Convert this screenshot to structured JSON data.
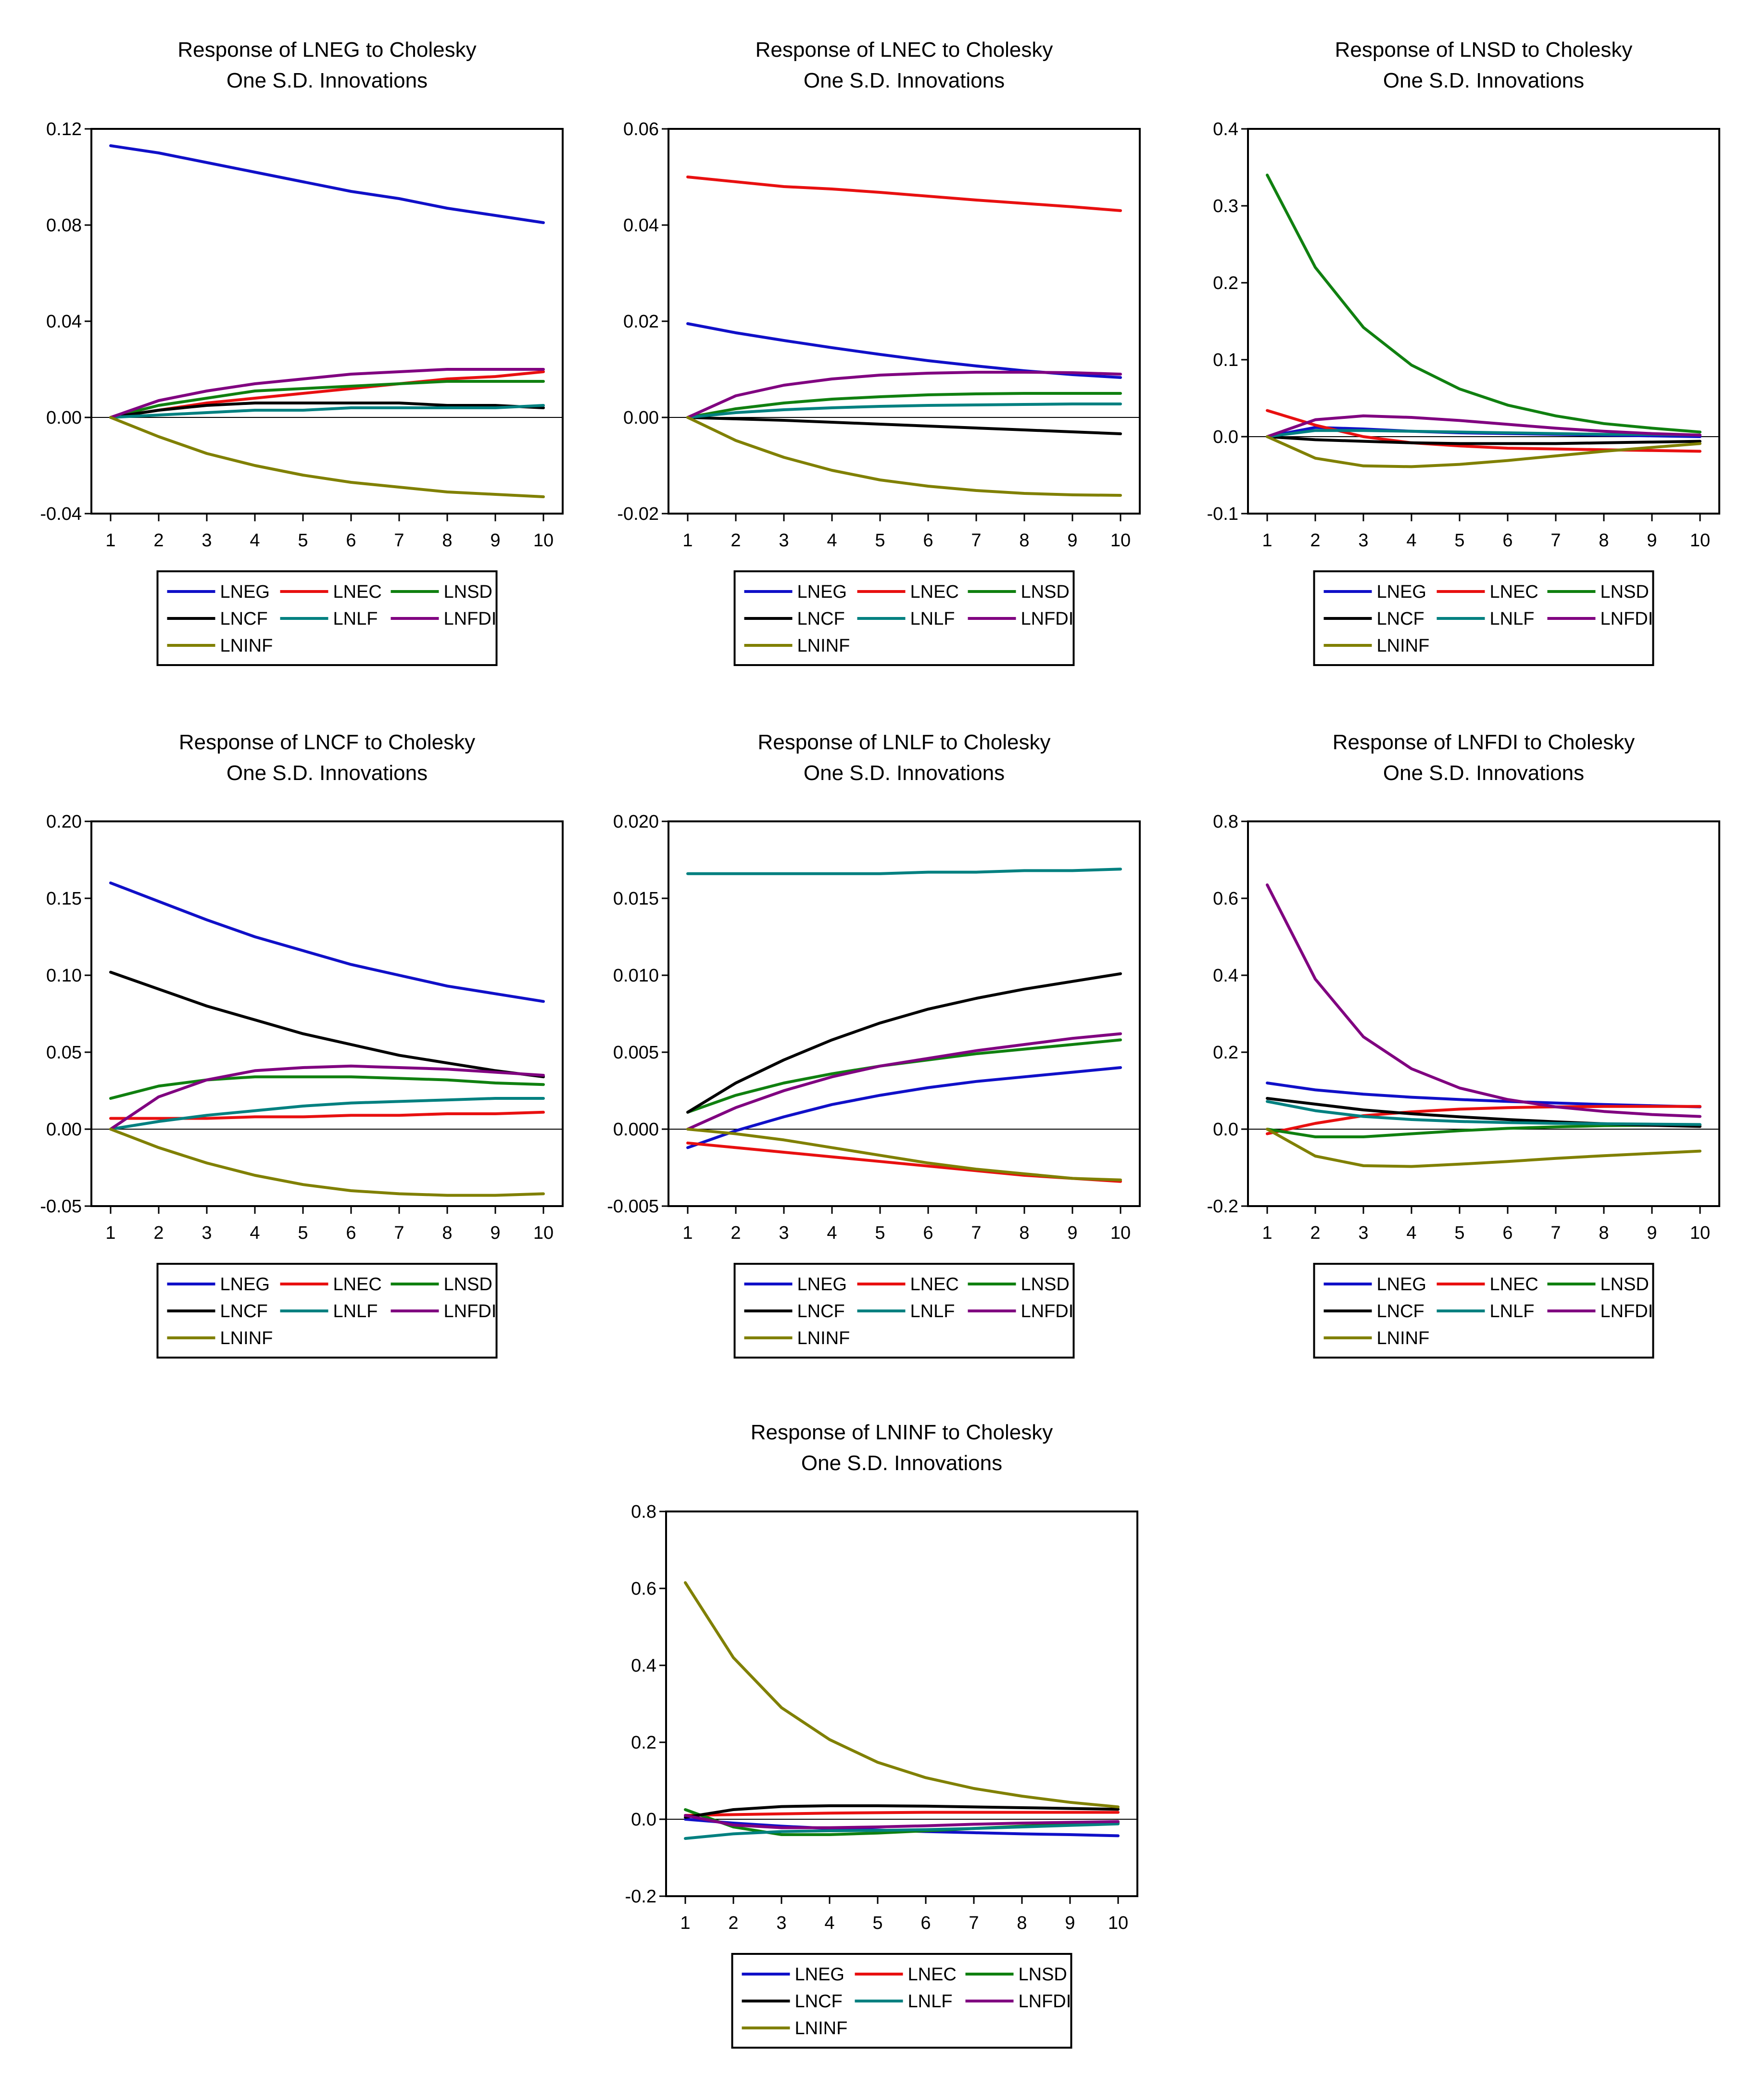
{
  "colors": {
    "LNEG": "#1010c8",
    "LNEC": "#e81010",
    "LNSD": "#108010",
    "LNCF": "#000000",
    "LNLF": "#008080",
    "LNFDI": "#800080",
    "LNINF": "#808000"
  },
  "legend_order": [
    "LNEG",
    "LNEC",
    "LNSD",
    "LNCF",
    "LNLF",
    "LNFDI",
    "LNINF"
  ],
  "chart_data": [
    {
      "type": "line",
      "title": "Response of LNEG to Cholesky",
      "subtitle": "One S.D. Innovations",
      "x": [
        1,
        2,
        3,
        4,
        5,
        6,
        7,
        8,
        9,
        10
      ],
      "ylim": [
        -0.04,
        0.12
      ],
      "yticks": [
        -0.04,
        0.0,
        0.04,
        0.08,
        0.12
      ],
      "ytick_labels": [
        "-0.04",
        "0.00",
        "0.04",
        "0.08",
        "0.12"
      ],
      "series": [
        {
          "name": "LNEG",
          "values": [
            0.113,
            0.11,
            0.106,
            0.102,
            0.098,
            0.094,
            0.091,
            0.087,
            0.084,
            0.081
          ]
        },
        {
          "name": "LNEC",
          "values": [
            0.0,
            0.003,
            0.006,
            0.008,
            0.01,
            0.012,
            0.014,
            0.016,
            0.017,
            0.019
          ]
        },
        {
          "name": "LNSD",
          "values": [
            0.0,
            0.005,
            0.008,
            0.011,
            0.012,
            0.013,
            0.014,
            0.015,
            0.015,
            0.015
          ]
        },
        {
          "name": "LNCF",
          "values": [
            0.0,
            0.003,
            0.005,
            0.006,
            0.006,
            0.006,
            0.006,
            0.005,
            0.005,
            0.004
          ]
        },
        {
          "name": "LNLF",
          "values": [
            0.0,
            0.001,
            0.002,
            0.003,
            0.003,
            0.004,
            0.004,
            0.004,
            0.004,
            0.005
          ]
        },
        {
          "name": "LNFDI",
          "values": [
            0.0,
            0.007,
            0.011,
            0.014,
            0.016,
            0.018,
            0.019,
            0.02,
            0.02,
            0.02
          ]
        },
        {
          "name": "LNINF",
          "values": [
            0.0,
            -0.008,
            -0.015,
            -0.02,
            -0.024,
            -0.027,
            -0.029,
            -0.031,
            -0.032,
            -0.033
          ]
        }
      ]
    },
    {
      "type": "line",
      "title": "Response of LNEC to Cholesky",
      "subtitle": "One S.D. Innovations",
      "x": [
        1,
        2,
        3,
        4,
        5,
        6,
        7,
        8,
        9,
        10
      ],
      "ylim": [
        -0.02,
        0.06
      ],
      "yticks": [
        -0.02,
        0.0,
        0.02,
        0.04,
        0.06
      ],
      "ytick_labels": [
        "-0.02",
        "0.00",
        "0.02",
        "0.04",
        "0.06"
      ],
      "series": [
        {
          "name": "LNEG",
          "values": [
            0.0195,
            0.0176,
            0.016,
            0.0145,
            0.0131,
            0.0118,
            0.0107,
            0.0097,
            0.0089,
            0.0083
          ]
        },
        {
          "name": "LNEC",
          "values": [
            0.05,
            0.049,
            0.048,
            0.0475,
            0.0468,
            0.046,
            0.0452,
            0.0445,
            0.0438,
            0.043
          ]
        },
        {
          "name": "LNSD",
          "values": [
            0.0,
            0.0018,
            0.003,
            0.0038,
            0.0043,
            0.0047,
            0.0049,
            0.005,
            0.005,
            0.005
          ]
        },
        {
          "name": "LNCF",
          "values": [
            0.0,
            -0.0003,
            -0.0006,
            -0.001,
            -0.0014,
            -0.0018,
            -0.0022,
            -0.0026,
            -0.003,
            -0.0034
          ]
        },
        {
          "name": "LNLF",
          "values": [
            0.0,
            0.001,
            0.0016,
            0.002,
            0.0023,
            0.0025,
            0.0026,
            0.0027,
            0.0028,
            0.0028
          ]
        },
        {
          "name": "LNFDI",
          "values": [
            0.0,
            0.0045,
            0.0067,
            0.008,
            0.0088,
            0.0092,
            0.0094,
            0.0094,
            0.0093,
            0.009
          ]
        },
        {
          "name": "LNINF",
          "values": [
            0.0,
            -0.0048,
            -0.0083,
            -0.011,
            -0.013,
            -0.0143,
            -0.0152,
            -0.0158,
            -0.0161,
            -0.0162
          ]
        }
      ]
    },
    {
      "type": "line",
      "title": "Response of LNSD to Cholesky",
      "subtitle": "One S.D. Innovations",
      "x": [
        1,
        2,
        3,
        4,
        5,
        6,
        7,
        8,
        9,
        10
      ],
      "ylim": [
        -0.1,
        0.4
      ],
      "yticks": [
        -0.1,
        0.0,
        0.1,
        0.2,
        0.3,
        0.4
      ],
      "ytick_labels": [
        "-0.1",
        "0.0",
        "0.1",
        "0.2",
        "0.3",
        "0.4"
      ],
      "series": [
        {
          "name": "LNEG",
          "values": [
            0.0,
            0.012,
            0.01,
            0.007,
            0.005,
            0.004,
            0.003,
            0.002,
            0.001,
            0.0
          ]
        },
        {
          "name": "LNEC",
          "values": [
            0.034,
            0.015,
            0.0,
            -0.008,
            -0.012,
            -0.015,
            -0.016,
            -0.017,
            -0.018,
            -0.019
          ]
        },
        {
          "name": "LNSD",
          "values": [
            0.34,
            0.22,
            0.142,
            0.093,
            0.062,
            0.041,
            0.027,
            0.017,
            0.011,
            0.006
          ]
        },
        {
          "name": "LNCF",
          "values": [
            0.0,
            -0.004,
            -0.006,
            -0.008,
            -0.009,
            -0.009,
            -0.009,
            -0.008,
            -0.007,
            -0.006
          ]
        },
        {
          "name": "LNLF",
          "values": [
            0.0,
            0.008,
            0.008,
            0.007,
            0.006,
            0.005,
            0.004,
            0.003,
            0.003,
            0.002
          ]
        },
        {
          "name": "LNFDI",
          "values": [
            0.0,
            0.022,
            0.027,
            0.025,
            0.021,
            0.016,
            0.011,
            0.007,
            0.004,
            0.002
          ]
        },
        {
          "name": "LNINF",
          "values": [
            0.0,
            -0.028,
            -0.038,
            -0.039,
            -0.036,
            -0.031,
            -0.025,
            -0.019,
            -0.014,
            -0.009
          ]
        }
      ]
    },
    {
      "type": "line",
      "title": "Response of LNCF to Cholesky",
      "subtitle": "One S.D. Innovations",
      "x": [
        1,
        2,
        3,
        4,
        5,
        6,
        7,
        8,
        9,
        10
      ],
      "ylim": [
        -0.05,
        0.2
      ],
      "yticks": [
        -0.05,
        0.0,
        0.05,
        0.1,
        0.15,
        0.2
      ],
      "ytick_labels": [
        "-0.05",
        "0.00",
        "0.05",
        "0.10",
        "0.15",
        "0.20"
      ],
      "series": [
        {
          "name": "LNEG",
          "values": [
            0.16,
            0.148,
            0.136,
            0.125,
            0.116,
            0.107,
            0.1,
            0.093,
            0.088,
            0.083
          ]
        },
        {
          "name": "LNEC",
          "values": [
            0.007,
            0.007,
            0.007,
            0.008,
            0.008,
            0.009,
            0.009,
            0.01,
            0.01,
            0.011
          ]
        },
        {
          "name": "LNSD",
          "values": [
            0.02,
            0.028,
            0.032,
            0.034,
            0.034,
            0.034,
            0.033,
            0.032,
            0.03,
            0.029
          ]
        },
        {
          "name": "LNCF",
          "values": [
            0.102,
            0.091,
            0.08,
            0.071,
            0.062,
            0.055,
            0.048,
            0.043,
            0.038,
            0.034
          ]
        },
        {
          "name": "LNLF",
          "values": [
            0.0,
            0.005,
            0.009,
            0.012,
            0.015,
            0.017,
            0.018,
            0.019,
            0.02,
            0.02
          ]
        },
        {
          "name": "LNFDI",
          "values": [
            0.0,
            0.021,
            0.032,
            0.038,
            0.04,
            0.041,
            0.04,
            0.039,
            0.037,
            0.035
          ]
        },
        {
          "name": "LNINF",
          "values": [
            0.0,
            -0.012,
            -0.022,
            -0.03,
            -0.036,
            -0.04,
            -0.042,
            -0.043,
            -0.043,
            -0.042
          ]
        }
      ]
    },
    {
      "type": "line",
      "title": "Response of LNLF to Cholesky",
      "subtitle": "One S.D. Innovations",
      "x": [
        1,
        2,
        3,
        4,
        5,
        6,
        7,
        8,
        9,
        10
      ],
      "ylim": [
        -0.005,
        0.02
      ],
      "yticks": [
        -0.005,
        0.0,
        0.005,
        0.01,
        0.015,
        0.02
      ],
      "ytick_labels": [
        "-0.005",
        "0.000",
        "0.005",
        "0.010",
        "0.015",
        "0.020"
      ],
      "series": [
        {
          "name": "LNEG",
          "values": [
            -0.0012,
            -0.0001,
            0.0008,
            0.0016,
            0.0022,
            0.0027,
            0.0031,
            0.0034,
            0.0037,
            0.004
          ]
        },
        {
          "name": "LNEC",
          "values": [
            -0.0009,
            -0.0012,
            -0.0015,
            -0.0018,
            -0.0021,
            -0.0024,
            -0.0027,
            -0.003,
            -0.0032,
            -0.0034
          ]
        },
        {
          "name": "LNSD",
          "values": [
            0.0011,
            0.0022,
            0.003,
            0.0036,
            0.0041,
            0.0045,
            0.0049,
            0.0052,
            0.0055,
            0.0058
          ]
        },
        {
          "name": "LNCF",
          "values": [
            0.0011,
            0.003,
            0.0045,
            0.0058,
            0.0069,
            0.0078,
            0.0085,
            0.0091,
            0.0096,
            0.0101
          ]
        },
        {
          "name": "LNLF",
          "values": [
            0.0166,
            0.0166,
            0.0166,
            0.0166,
            0.0166,
            0.0167,
            0.0167,
            0.0168,
            0.0168,
            0.0169
          ]
        },
        {
          "name": "LNFDI",
          "values": [
            0.0,
            0.0014,
            0.0025,
            0.0034,
            0.0041,
            0.0046,
            0.0051,
            0.0055,
            0.0059,
            0.0062
          ]
        },
        {
          "name": "LNINF",
          "values": [
            0.0,
            -0.0003,
            -0.0007,
            -0.0012,
            -0.0017,
            -0.0022,
            -0.0026,
            -0.0029,
            -0.0032,
            -0.0033
          ]
        }
      ]
    },
    {
      "type": "line",
      "title": "Response of LNFDI to Cholesky",
      "subtitle": "One S.D. Innovations",
      "x": [
        1,
        2,
        3,
        4,
        5,
        6,
        7,
        8,
        9,
        10
      ],
      "ylim": [
        -0.2,
        0.8
      ],
      "yticks": [
        -0.2,
        0.0,
        0.2,
        0.4,
        0.6,
        0.8
      ],
      "ytick_labels": [
        "-0.2",
        "0.0",
        "0.2",
        "0.4",
        "0.6",
        "0.8"
      ],
      "series": [
        {
          "name": "LNEG",
          "values": [
            0.12,
            0.102,
            0.091,
            0.083,
            0.077,
            0.072,
            0.068,
            0.064,
            0.061,
            0.058
          ]
        },
        {
          "name": "LNEC",
          "values": [
            -0.012,
            0.015,
            0.035,
            0.045,
            0.052,
            0.056,
            0.058,
            0.059,
            0.059,
            0.059
          ]
        },
        {
          "name": "LNSD",
          "values": [
            0.0,
            -0.02,
            -0.02,
            -0.012,
            -0.004,
            0.002,
            0.006,
            0.009,
            0.01,
            0.011
          ]
        },
        {
          "name": "LNCF",
          "values": [
            0.08,
            0.065,
            0.05,
            0.04,
            0.032,
            0.025,
            0.019,
            0.014,
            0.01,
            0.007
          ]
        },
        {
          "name": "LNLF",
          "values": [
            0.072,
            0.048,
            0.033,
            0.025,
            0.02,
            0.017,
            0.015,
            0.014,
            0.013,
            0.012
          ]
        },
        {
          "name": "LNFDI",
          "values": [
            0.635,
            0.39,
            0.24,
            0.157,
            0.107,
            0.077,
            0.058,
            0.046,
            0.038,
            0.033
          ]
        },
        {
          "name": "LNINF",
          "values": [
            0.0,
            -0.07,
            -0.095,
            -0.097,
            -0.091,
            -0.084,
            -0.076,
            -0.069,
            -0.063,
            -0.057
          ]
        }
      ]
    },
    {
      "type": "line",
      "title": "Response of LNINF to Cholesky",
      "subtitle": "One S.D. Innovations",
      "x": [
        1,
        2,
        3,
        4,
        5,
        6,
        7,
        8,
        9,
        10
      ],
      "ylim": [
        -0.2,
        0.8
      ],
      "yticks": [
        -0.2,
        0.0,
        0.2,
        0.4,
        0.6,
        0.8
      ],
      "ytick_labels": [
        "-0.2",
        "0.0",
        "0.2",
        "0.4",
        "0.6",
        "0.8"
      ],
      "series": [
        {
          "name": "LNEG",
          "values": [
            0.0,
            -0.01,
            -0.018,
            -0.024,
            -0.028,
            -0.032,
            -0.035,
            -0.038,
            -0.04,
            -0.043
          ]
        },
        {
          "name": "LNEC",
          "values": [
            0.01,
            0.012,
            0.014,
            0.016,
            0.017,
            0.018,
            0.018,
            0.018,
            0.018,
            0.018
          ]
        },
        {
          "name": "LNSD",
          "values": [
            0.025,
            -0.02,
            -0.04,
            -0.04,
            -0.036,
            -0.03,
            -0.024,
            -0.018,
            -0.013,
            -0.009
          ]
        },
        {
          "name": "LNCF",
          "values": [
            0.005,
            0.025,
            0.033,
            0.035,
            0.035,
            0.034,
            0.032,
            0.03,
            0.028,
            0.026
          ]
        },
        {
          "name": "LNLF",
          "values": [
            -0.05,
            -0.038,
            -0.032,
            -0.03,
            -0.029,
            -0.027,
            -0.024,
            -0.02,
            -0.016,
            -0.012
          ]
        },
        {
          "name": "LNFDI",
          "values": [
            0.01,
            -0.015,
            -0.022,
            -0.022,
            -0.02,
            -0.017,
            -0.013,
            -0.01,
            -0.008,
            -0.006
          ]
        },
        {
          "name": "LNINF",
          "values": [
            0.615,
            0.42,
            0.29,
            0.207,
            0.148,
            0.108,
            0.08,
            0.06,
            0.044,
            0.032
          ]
        }
      ]
    }
  ]
}
